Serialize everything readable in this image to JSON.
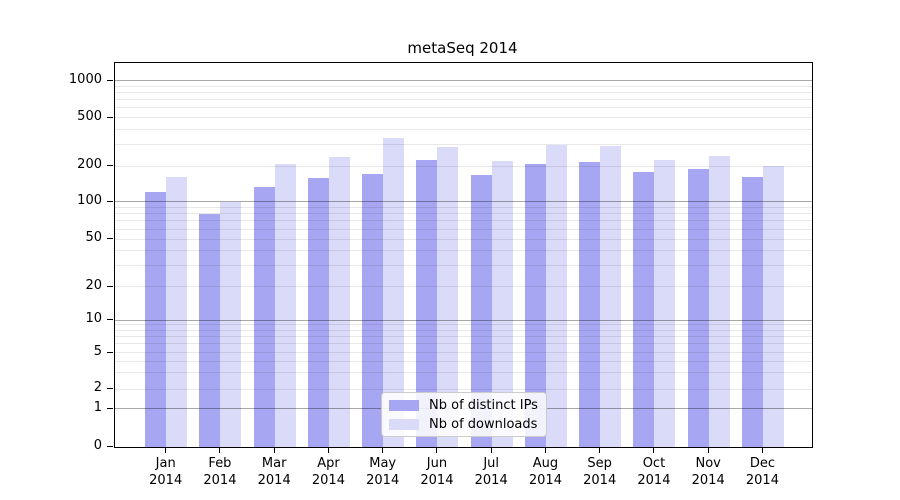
{
  "chart_data": {
    "type": "bar",
    "title": "metaSeq 2014",
    "categories": [
      "Jan 2014",
      "Feb 2014",
      "Mar 2014",
      "Apr 2014",
      "May 2014",
      "Jun 2014",
      "Jul 2014",
      "Aug 2014",
      "Sep 2014",
      "Oct 2014",
      "Nov 2014",
      "Dec 2014"
    ],
    "series": [
      {
        "name": "Nb of distinct IPs",
        "color": "#a6a6f2",
        "values": [
          120,
          80,
          134,
          158,
          170,
          224,
          168,
          207,
          216,
          180,
          190,
          161
        ]
      },
      {
        "name": "Nb of downloads",
        "color": "#dadaf9",
        "values": [
          163,
          100,
          207,
          236,
          338,
          288,
          219,
          300,
          291,
          224,
          243,
          200
        ]
      }
    ],
    "y_ticks": [
      0,
      1,
      2,
      5,
      10,
      20,
      50,
      100,
      200,
      500,
      1000
    ],
    "y_scale": "log-like (symlog, linear below 1)",
    "ylim": [
      0,
      1380
    ],
    "xlabel": "",
    "ylabel": "",
    "grid": "horizontal, minor lines per decade, darker lines at powers of 10",
    "legend_position": "inside bottom-center"
  }
}
